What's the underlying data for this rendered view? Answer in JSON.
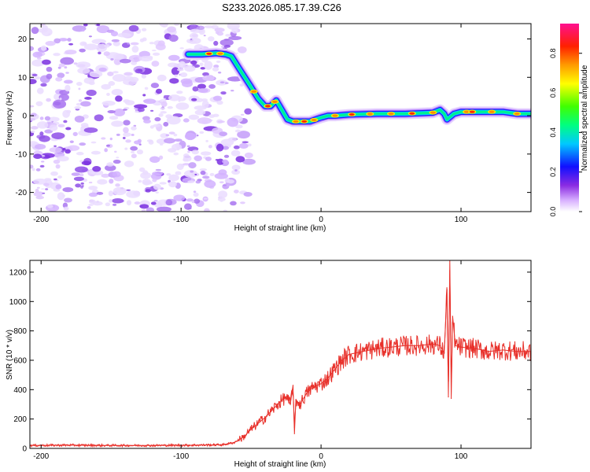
{
  "title": "S233.2026.085.17.39.C26",
  "colors": {
    "snr_line": "#e8302a",
    "axis": "#000000",
    "track_edge": "#1a1aff"
  },
  "chart_data": [
    {
      "type": "heatmap",
      "xlabel": "Height of straight line (km)",
      "ylabel": "Frequency (Hz)",
      "xlim": [
        -208,
        150
      ],
      "ylim": [
        -25,
        24
      ],
      "xticks": [
        -200,
        -100,
        0,
        100
      ],
      "xtick_labels": [
        "-200",
        "-100",
        "0",
        "100"
      ],
      "yticks": [
        -20,
        -10,
        0,
        10,
        20
      ],
      "ytick_labels": [
        "-20",
        "-10",
        "0",
        "10",
        "20"
      ],
      "noise_region_x": [
        -208,
        -62
      ],
      "track": {
        "x": [
          -95,
          -85,
          -75,
          -68,
          -64,
          -58,
          -50,
          -45,
          -40,
          -36,
          -32,
          -28,
          -24,
          -20,
          -16,
          -12,
          -8,
          -4,
          0,
          5,
          10,
          20,
          40,
          60,
          80,
          85,
          88,
          90,
          95,
          100,
          110,
          120,
          130,
          140,
          150
        ],
        "y": [
          16,
          16,
          16.3,
          16,
          15.5,
          12,
          7.5,
          4.5,
          2.5,
          2.5,
          4,
          1.5,
          -1,
          -1.5,
          -1.5,
          -1.5,
          -1.5,
          -1,
          -0.5,
          0,
          0,
          0.3,
          0.5,
          0.5,
          0.8,
          1.5,
          0.5,
          -1,
          0.5,
          1,
          1,
          1,
          1,
          0.5,
          0.5
        ]
      },
      "colorbar": {
        "label": "Normalized spectral amplitude",
        "range": [
          0,
          0.95
        ],
        "ticks": [
          0,
          0.2,
          0.4,
          0.6,
          0.8
        ],
        "tick_labels": [
          "0.0",
          "0.2",
          "0.4",
          "0.6",
          "0.8"
        ],
        "colormap": "rainbow"
      }
    },
    {
      "type": "line",
      "xlabel": "Height of straight line (km)",
      "ylabel": "SNR (10 * v/v)",
      "xlim": [
        -208,
        150
      ],
      "ylim": [
        0,
        1280
      ],
      "xticks": [
        -200,
        -100,
        0,
        100
      ],
      "xtick_labels": [
        "-200",
        "-100",
        "0",
        "100"
      ],
      "yticks": [
        0,
        200,
        400,
        600,
        800,
        1000,
        1200
      ],
      "ytick_labels": [
        "0",
        "200",
        "400",
        "600",
        "800",
        "1000",
        "1200"
      ],
      "series": [
        {
          "x": [
            -208,
            -180,
            -150,
            -120,
            -90,
            -70,
            -62,
            -55,
            -50,
            -45,
            -40,
            -35,
            -30,
            -25,
            -22,
            -20,
            -19,
            -18,
            -15,
            -10,
            -5,
            0,
            5,
            10,
            15,
            20,
            25,
            30,
            40,
            50,
            60,
            70,
            80,
            85,
            88,
            90,
            91,
            92,
            93,
            94,
            96,
            100,
            110,
            120,
            130,
            140,
            150
          ],
          "y": [
            20,
            22,
            20,
            20,
            22,
            25,
            40,
            80,
            130,
            170,
            210,
            260,
            310,
            350,
            300,
            430,
            100,
            330,
            300,
            380,
            420,
            440,
            480,
            540,
            600,
            640,
            650,
            660,
            680,
            690,
            700,
            700,
            710,
            700,
            650,
            1080,
            350,
            1280,
            340,
            900,
            700,
            690,
            680,
            660,
            670,
            660,
            660
          ]
        }
      ]
    }
  ]
}
